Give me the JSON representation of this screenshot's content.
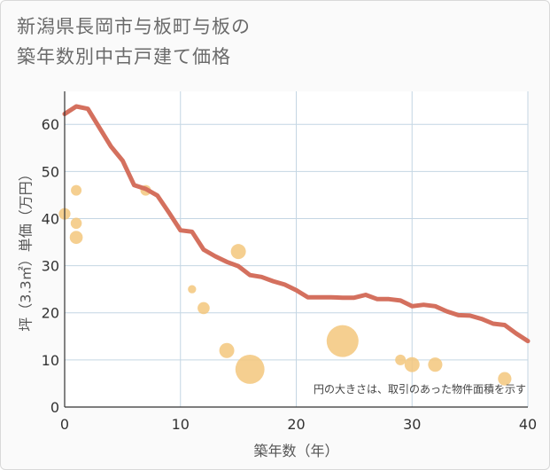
{
  "title": {
    "line1": "新潟県長岡市与板町与板の",
    "line2": "築年数別中古戸建て価格"
  },
  "colors": {
    "line": "#d4705e",
    "bubble": "#f3c77c",
    "grid": "#c4d6e3",
    "axis": "#333333"
  },
  "chart_data": {
    "type": "scatter",
    "xlabel": "築年数（年）",
    "ylabel": "坪（3.3㎡）単価（万円）",
    "xlim": [
      0,
      40
    ],
    "ylim": [
      0,
      67
    ],
    "xticks": [
      "0",
      "10",
      "20",
      "30",
      "40"
    ],
    "yticks": [
      "0",
      "10",
      "20",
      "30",
      "40",
      "50",
      "60"
    ],
    "note": "円の大きさは、取引のあった物件面積を示す",
    "series": [
      {
        "name": "trend",
        "kind": "line",
        "x": [
          0,
          1,
          2,
          3,
          4,
          5,
          6,
          7,
          8,
          9,
          10,
          11,
          12,
          13,
          14,
          15,
          16,
          17,
          18,
          19,
          20,
          21,
          22,
          23,
          24,
          25,
          26,
          27,
          28,
          29,
          30,
          31,
          32,
          33,
          34,
          35,
          36,
          37,
          38,
          39,
          40
        ],
        "y": [
          62.2,
          63.8,
          63.3,
          59.3,
          55.3,
          52.3,
          47.1,
          46.3,
          44.9,
          41.3,
          37.5,
          37.2,
          33.4,
          32.0,
          30.8,
          29.9,
          28.0,
          27.6,
          26.7,
          26.0,
          24.8,
          23.3,
          23.3,
          23.3,
          23.2,
          23.2,
          23.8,
          22.9,
          22.9,
          22.6,
          21.4,
          21.7,
          21.4,
          20.3,
          19.5,
          19.4,
          18.7,
          17.7,
          17.4,
          15.6,
          14.0
        ]
      },
      {
        "name": "transactions",
        "kind": "bubble",
        "points": [
          {
            "x": 0,
            "y": 41,
            "size": 1.2
          },
          {
            "x": 1,
            "y": 46,
            "size": 1.0
          },
          {
            "x": 1,
            "y": 39,
            "size": 1.1
          },
          {
            "x": 1,
            "y": 36,
            "size": 1.5
          },
          {
            "x": 7,
            "y": 46,
            "size": 1.0
          },
          {
            "x": 11,
            "y": 25,
            "size": 0.6
          },
          {
            "x": 12,
            "y": 21,
            "size": 1.3
          },
          {
            "x": 14,
            "y": 12,
            "size": 2.0
          },
          {
            "x": 15,
            "y": 33,
            "size": 2.0
          },
          {
            "x": 16,
            "y": 8,
            "size": 7.5
          },
          {
            "x": 24,
            "y": 14,
            "size": 9.0
          },
          {
            "x": 29,
            "y": 10,
            "size": 1.0
          },
          {
            "x": 30,
            "y": 9,
            "size": 2.0
          },
          {
            "x": 32,
            "y": 9,
            "size": 1.8
          },
          {
            "x": 38,
            "y": 6,
            "size": 1.6
          }
        ]
      }
    ]
  }
}
